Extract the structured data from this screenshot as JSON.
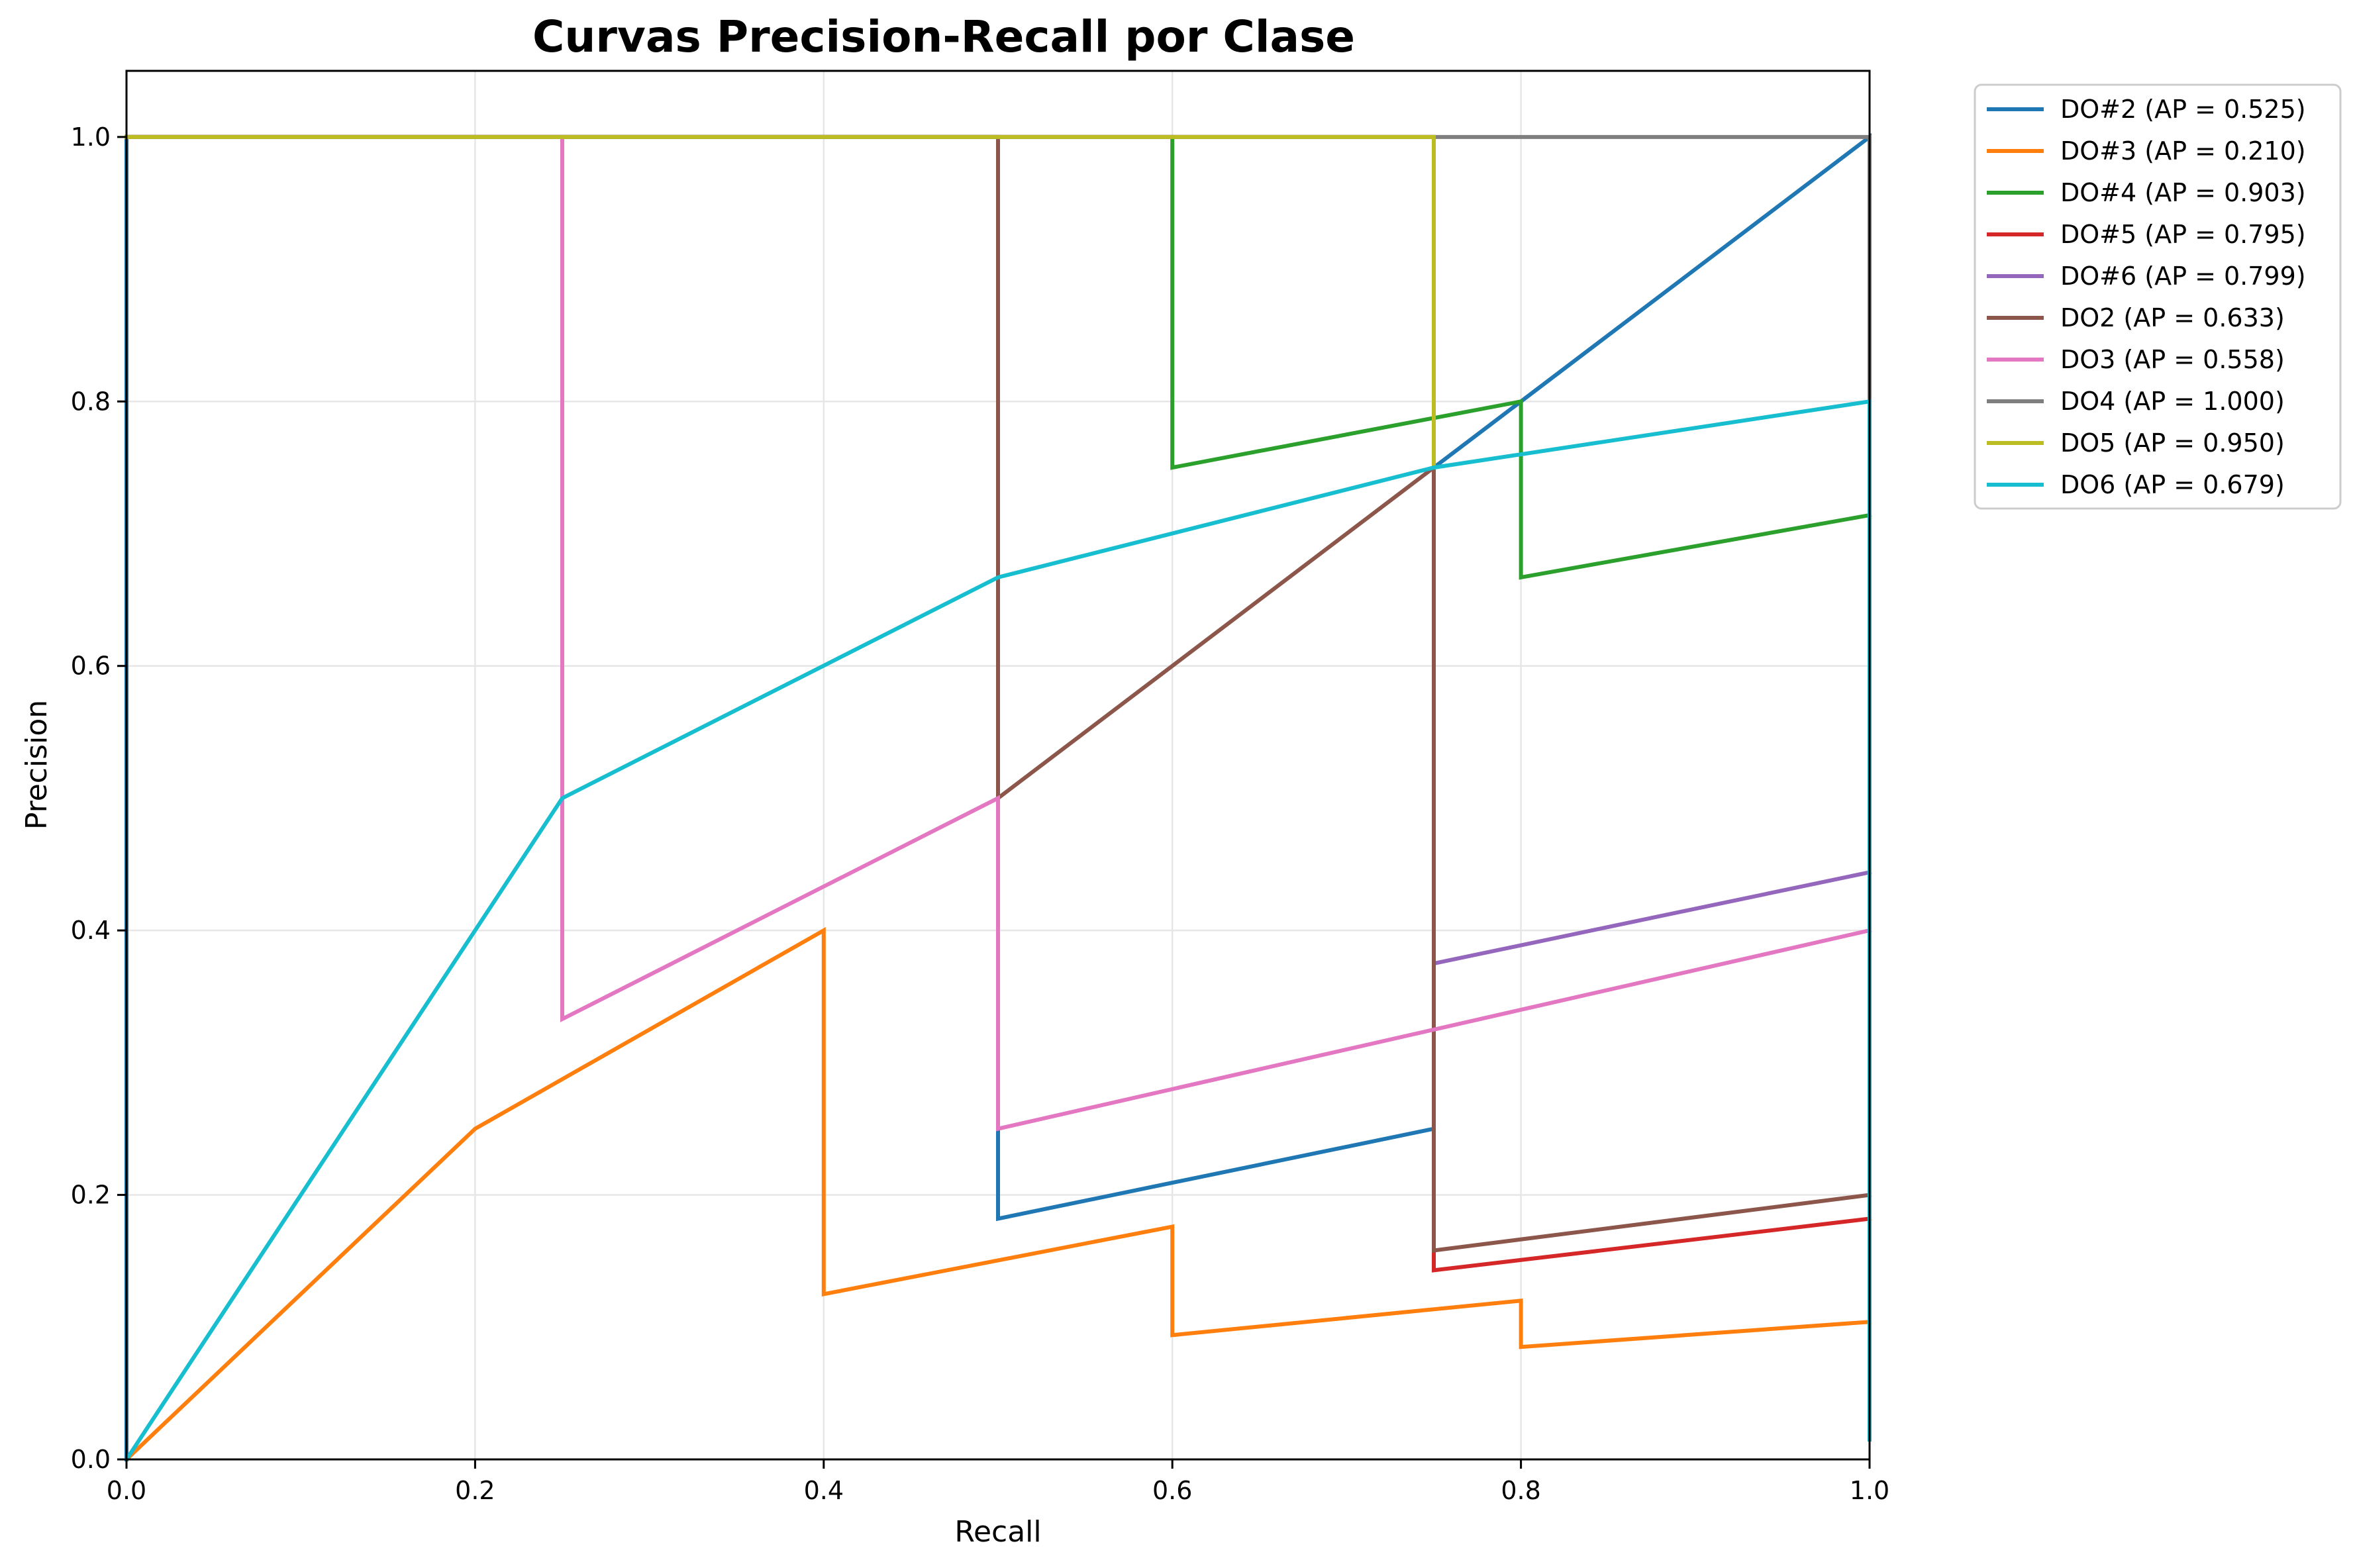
{
  "chart_data": {
    "type": "line",
    "title": "Curvas Precision-Recall por Clase",
    "xlabel": "Recall",
    "ylabel": "Precision",
    "xlim": [
      0,
      1
    ],
    "ylim": [
      0,
      1.05
    ],
    "xticks": [
      "0.0",
      "0.2",
      "0.4",
      "0.6",
      "0.8",
      "1.0"
    ],
    "yticks": [
      "0.0",
      "0.2",
      "0.4",
      "0.6",
      "0.8",
      "1.0"
    ],
    "grid": true,
    "legend_position": "outside-top-right",
    "series": [
      {
        "name": "DO#2 (AP = 0.525)",
        "color": "#1f77b4",
        "x": [
          0,
          0,
          0.5,
          0.5,
          0.75,
          0.75,
          1.0,
          1.0
        ],
        "y": [
          0,
          1.0,
          1.0,
          0.182,
          0.25,
          0.75,
          1.0,
          0.015
        ]
      },
      {
        "name": "DO#3 (AP = 0.210)",
        "color": "#ff7f0e",
        "x": [
          0,
          0.2,
          0.4,
          0.4,
          0.6,
          0.6,
          0.8,
          0.8,
          1.0
        ],
        "y": [
          0,
          0.25,
          0.4,
          0.125,
          0.176,
          0.094,
          0.12,
          0.085,
          0.104
        ]
      },
      {
        "name": "DO#4 (AP = 0.903)",
        "color": "#2ca02c",
        "x": [
          0,
          0.6,
          0.6,
          0.8,
          0.8,
          1.0
        ],
        "y": [
          1.0,
          1.0,
          0.75,
          0.8,
          0.667,
          0.714
        ]
      },
      {
        "name": "DO#5 (AP = 0.795)",
        "color": "#d62728",
        "x": [
          0,
          0.75,
          0.75,
          1.0
        ],
        "y": [
          1.0,
          1.0,
          0.143,
          0.182
        ]
      },
      {
        "name": "DO#6 (AP = 0.799)",
        "color": "#9467bd",
        "x": [
          0,
          0.75,
          0.75,
          1.0
        ],
        "y": [
          1.0,
          1.0,
          0.375,
          0.444
        ]
      },
      {
        "name": "DO2 (AP = 0.633)",
        "color": "#8c564b",
        "x": [
          0,
          0.5,
          0.5,
          0.75,
          0.75,
          1.0
        ],
        "y": [
          1.0,
          1.0,
          0.5,
          0.75,
          0.158,
          0.2
        ]
      },
      {
        "name": "DO3 (AP = 0.558)",
        "color": "#e377c2",
        "x": [
          0,
          0.25,
          0.25,
          0.5,
          0.5,
          1.0
        ],
        "y": [
          1.0,
          1.0,
          0.333,
          0.5,
          0.25,
          0.4
        ]
      },
      {
        "name": "DO4 (AP = 1.000)",
        "color": "#7f7f7f",
        "x": [
          0,
          1.0,
          1.0
        ],
        "y": [
          1.0,
          1.0,
          0.2
        ]
      },
      {
        "name": "DO5 (AP = 0.950)",
        "color": "#bcbd22",
        "x": [
          0,
          0.75,
          0.75
        ],
        "y": [
          1.0,
          1.0,
          0.75
        ]
      },
      {
        "name": "DO6 (AP = 0.679)",
        "color": "#17becf",
        "x": [
          0,
          0.25,
          0.5,
          0.75,
          1.0,
          1.0
        ],
        "y": [
          0,
          0.5,
          0.667,
          0.75,
          0.8,
          0.015
        ]
      }
    ]
  }
}
